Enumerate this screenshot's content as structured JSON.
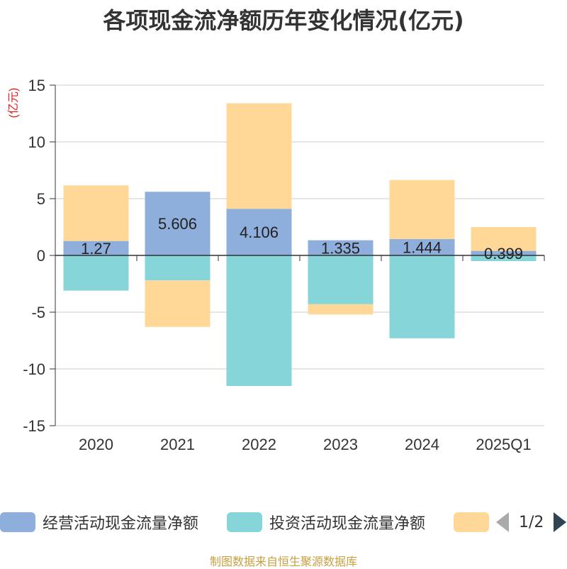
{
  "chart_data": {
    "type": "bar",
    "title": "各项现金流净额历年变化情况(亿元)",
    "ylabel": "(亿元)",
    "categories": [
      "2020",
      "2021",
      "2022",
      "2023",
      "2024",
      "2025Q1"
    ],
    "ylim": [
      -15,
      15
    ],
    "yticks": [
      15,
      10,
      5,
      0,
      -5,
      -10,
      -15
    ],
    "stacked": true,
    "grid": true,
    "legend_position": "bottom",
    "series": [
      {
        "name": "经营活动现金流量净额",
        "color": "#8eaedc",
        "values": [
          1.27,
          5.606,
          4.106,
          1.335,
          1.444,
          0.399
        ],
        "labels": [
          "1.27",
          "5.606",
          "4.106",
          "1.335",
          "1.444",
          "0.399"
        ]
      },
      {
        "name": "投资活动现金流量净额",
        "color": "#86d5d8",
        "values": [
          -3.1,
          -2.2,
          -11.5,
          -4.3,
          -7.3,
          -0.5
        ]
      },
      {
        "name": "",
        "color": "#ffd898",
        "values": [
          4.9,
          -4.1,
          9.3,
          -0.9,
          5.2,
          2.1
        ]
      }
    ]
  },
  "legend": {
    "page_text": "1/2"
  },
  "source_note": "制图数据来自恒生聚源数据库"
}
